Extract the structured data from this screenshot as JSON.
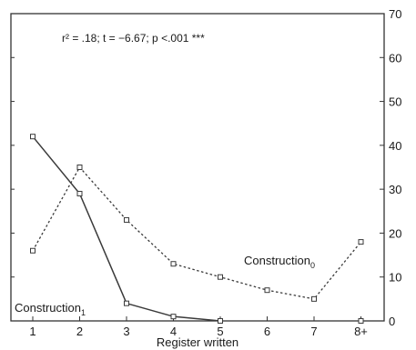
{
  "chart_data": {
    "type": "line",
    "title": "",
    "annotation": "r² = .18; t = −6.67; p <.001 ***",
    "xlabel": "Register written",
    "ylabel": "",
    "categories": [
      "1",
      "2",
      "3",
      "4",
      "5",
      "6",
      "7",
      "8+"
    ],
    "ylim": [
      0,
      70
    ],
    "yticks": [
      0,
      10,
      20,
      30,
      40,
      50,
      60,
      70
    ],
    "y_axis_side": "right",
    "grid": false,
    "series": [
      {
        "name": "Construction1",
        "label_main": "Construction",
        "label_sub": "1",
        "style": "solid",
        "color": "#3a3a3a",
        "values": [
          42,
          29,
          4,
          1,
          0,
          null,
          null,
          0
        ]
      },
      {
        "name": "Construction0",
        "label_main": "Construction",
        "label_sub": "0",
        "style": "dotted",
        "color": "#3a3a3a",
        "values": [
          16,
          35,
          23,
          13,
          10,
          7,
          5,
          18
        ]
      }
    ]
  }
}
